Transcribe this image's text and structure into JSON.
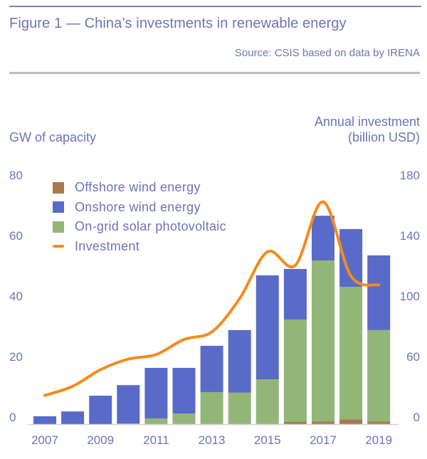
{
  "header": {
    "title": "Figure 1 — China’s investments in renewable energy",
    "source": "Source: CSIS based on data by IRENA"
  },
  "colors": {
    "text": "#6b75b8",
    "offshore": "#a57a4c",
    "onshore": "#5a6ac8",
    "solar": "#92b677",
    "investment": "#f28c1c",
    "baseline": "#d0d2dc"
  },
  "chart_data": {
    "type": "bar",
    "stacked": true,
    "title": "Figure 1 — China’s investments in renewable energy",
    "subtitle": "Source: CSIS based on data by IRENA",
    "xlabel": "",
    "ylabel": "GW of capacity",
    "y2label_line1": "Annual investment",
    "y2label_line2": "(billion USD)",
    "ylim": [
      0,
      80
    ],
    "y_ticks": [
      "0",
      "20",
      "40",
      "60",
      "80"
    ],
    "y2_ticks": [
      "0",
      "60",
      "100",
      "140",
      "180"
    ],
    "y2_note": "secondary axis ticks 60/100/140/180 align with 20/40/60/80 GW; 0 aligns with 0",
    "grid": false,
    "legend_position": "top-left",
    "categories": [
      "2007",
      "2008",
      "2009",
      "2010",
      "2011",
      "2012",
      "2013",
      "2014",
      "2015",
      "2016",
      "2017",
      "2018",
      "2019"
    ],
    "x_tick_labels": [
      "2007",
      "2009",
      "2011",
      "2013",
      "2015",
      "2017",
      "2019"
    ],
    "series": [
      {
        "name": "Offshore wind energy",
        "kind": "bar",
        "color_key": "offshore",
        "values": [
          0,
          0,
          0,
          0,
          0,
          0,
          0,
          0,
          0,
          0.8,
          0.9,
          1.6,
          0.9
        ]
      },
      {
        "name": "On-grid solar photovoltaic",
        "kind": "bar",
        "color_key": "solar",
        "values": [
          0,
          0,
          0,
          0.2,
          1.9,
          3.5,
          10.6,
          10.4,
          14.8,
          33.8,
          53.2,
          43.8,
          30.2
        ]
      },
      {
        "name": "Onshore wind energy",
        "kind": "bar",
        "color_key": "onshore",
        "values": [
          2.6,
          4.2,
          9.4,
          12.7,
          16.7,
          15.1,
          15.3,
          20.7,
          34.4,
          16.7,
          14.8,
          19.1,
          24.7
        ]
      },
      {
        "name": "Investment",
        "kind": "line",
        "axis": "right",
        "color_key": "investment",
        "unit": "billion USD",
        "values": [
          39,
          45,
          56,
          63,
          66,
          76,
          81,
          103,
          134,
          125,
          167,
          118,
          112
        ]
      }
    ],
    "legend": [
      {
        "label": "Offshore wind energy",
        "type": "swatch",
        "color_key": "offshore"
      },
      {
        "label": "Onshore wind energy",
        "type": "swatch",
        "color_key": "onshore"
      },
      {
        "label": "On-grid solar photovoltaic",
        "type": "swatch",
        "color_key": "solar"
      },
      {
        "label": "Investment",
        "type": "line",
        "color_key": "investment"
      }
    ]
  }
}
